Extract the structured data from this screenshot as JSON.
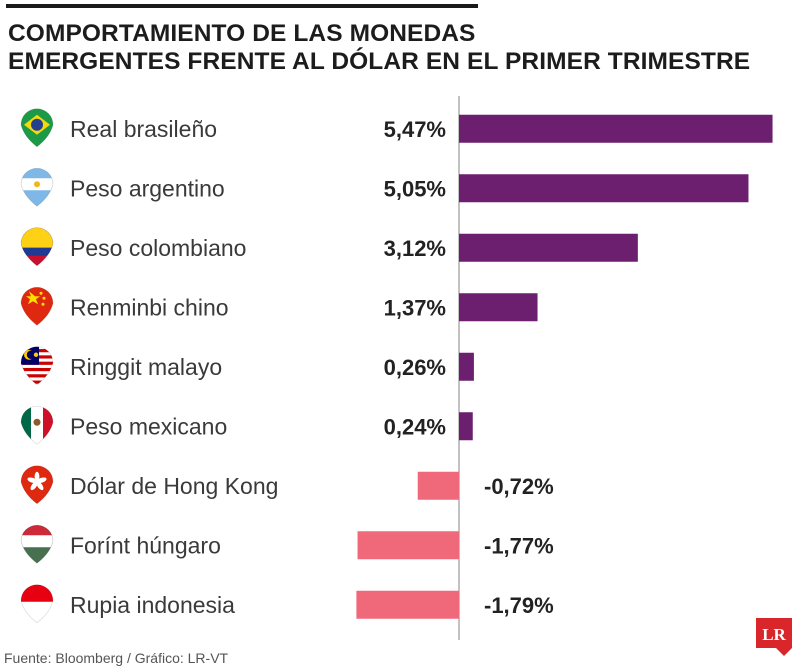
{
  "title": {
    "line1": "COMPORTAMIENTO DE LAS MONEDAS",
    "line2": "EMERGENTES FRENTE AL DÓLAR EN EL PRIMER TRIMESTRE"
  },
  "chart_data": {
    "type": "bar",
    "orientation": "horizontal",
    "categories": [
      "Real brasileño",
      "Peso argentino",
      "Peso colombiano",
      "Renminbi chino",
      "Ringgit malayo",
      "Peso mexicano",
      "Dólar de Hong Kong",
      "Forínt húngaro",
      "Rupia indonesia"
    ],
    "values": [
      5.47,
      5.05,
      3.12,
      1.37,
      0.26,
      0.24,
      -0.72,
      -1.77,
      -1.79
    ],
    "value_labels": [
      "5,47%",
      "5,05%",
      "3,12%",
      "1,37%",
      "0,26%",
      "0,24%",
      "-0,72%",
      "-1,77%",
      "-1,79%"
    ],
    "flag_icons": [
      "brazil-flag-icon",
      "argentina-flag-icon",
      "colombia-flag-icon",
      "china-flag-icon",
      "malaysia-flag-icon",
      "mexico-flag-icon",
      "hong-kong-flag-icon",
      "hungary-flag-icon",
      "indonesia-flag-icon"
    ],
    "xlim": [
      -1.8,
      5.6
    ],
    "colors": {
      "positive": "#6b1f6e",
      "negative": "#f0697a",
      "axis": "#9a9a9a"
    }
  },
  "source": "Fuente: Bloomberg  / Gráfico: LR-VT",
  "logo": {
    "text": "LR",
    "color": "#d9262b"
  }
}
